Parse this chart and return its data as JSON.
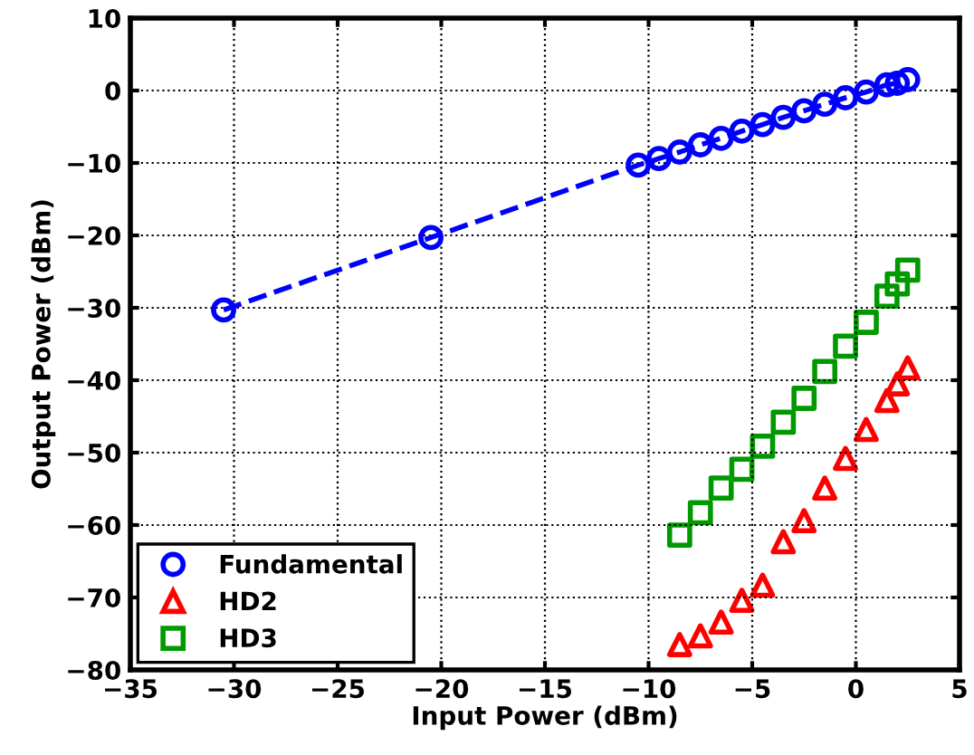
{
  "chart_data": {
    "type": "line",
    "xlabel": "Input Power (dBm)",
    "ylabel": "Output Power (dBm)",
    "xlim": [
      -35,
      5
    ],
    "xticks": [
      -35,
      -30,
      -25,
      -20,
      -15,
      -10,
      -5,
      0,
      5
    ],
    "ylim": [
      -80,
      10
    ],
    "yticks": [
      -80,
      -70,
      -60,
      -50,
      -40,
      -30,
      -20,
      -10,
      0,
      10
    ],
    "grid": true,
    "legend": "bottom left",
    "series": [
      {
        "name": "Fundamental",
        "color": "#0000ff",
        "marker": "circle",
        "line_style": "dashed",
        "x": [
          -30.5,
          -20.5,
          -10.5,
          -9.5,
          -8.5,
          -7.5,
          -6.5,
          -5.5,
          -4.5,
          -3.5,
          -2.5,
          -1.5,
          -0.5,
          0.5,
          1.5,
          2.0,
          2.5
        ],
        "values": [
          -30.3,
          -20.3,
          -10.3,
          -9.4,
          -8.5,
          -7.5,
          -6.6,
          -5.6,
          -4.7,
          -3.7,
          -2.8,
          -1.9,
          -1.0,
          -0.2,
          0.8,
          1.0,
          1.5
        ]
      },
      {
        "name": "HD2",
        "color": "#ff0000",
        "marker": "triangle",
        "type": "scatter",
        "x": [
          -8.5,
          -7.5,
          -6.5,
          -5.5,
          -4.5,
          -3.5,
          -2.5,
          -1.5,
          -0.5,
          0.5,
          1.5,
          2.0,
          2.5
        ],
        "values": [
          -76.5,
          -75.3,
          -73.4,
          -70.4,
          -68.3,
          -62.3,
          -59.4,
          -54.9,
          -50.8,
          -46.8,
          -42.8,
          -40.5,
          -38.3
        ]
      },
      {
        "name": "HD3",
        "color": "#009900",
        "marker": "square",
        "type": "scatter",
        "x": [
          -8.5,
          -7.5,
          -6.5,
          -5.5,
          -4.5,
          -3.5,
          -2.5,
          -1.5,
          -0.5,
          0.5,
          1.5,
          2.0,
          2.5
        ],
        "values": [
          -61.4,
          -58.3,
          -54.9,
          -52.3,
          -49.1,
          -45.8,
          -42.5,
          -38.8,
          -35.3,
          -32.0,
          -28.4,
          -26.7,
          -24.8
        ]
      }
    ]
  }
}
